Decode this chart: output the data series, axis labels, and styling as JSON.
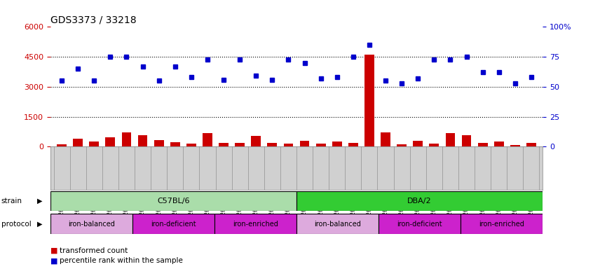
{
  "title": "GDS3373 / 33218",
  "samples": [
    "GSM262762",
    "GSM262765",
    "GSM262768",
    "GSM262769",
    "GSM262770",
    "GSM262796",
    "GSM262797",
    "GSM262798",
    "GSM262799",
    "GSM262800",
    "GSM262771",
    "GSM262772",
    "GSM262773",
    "GSM262794",
    "GSM262795",
    "GSM262817",
    "GSM262819",
    "GSM262820",
    "GSM262839",
    "GSM262840",
    "GSM262950",
    "GSM262951",
    "GSM262952",
    "GSM262953",
    "GSM262954",
    "GSM262841",
    "GSM262842",
    "GSM262843",
    "GSM262844",
    "GSM262845"
  ],
  "red_bars": [
    120,
    380,
    270,
    450,
    700,
    580,
    320,
    220,
    150,
    680,
    200,
    180,
    550,
    180,
    160,
    280,
    150,
    250,
    200,
    4600,
    700,
    120,
    280,
    160,
    680,
    580,
    190,
    250,
    80,
    180
  ],
  "blue_dots_pct": [
    55,
    65,
    55,
    75,
    75,
    67,
    55,
    67,
    58,
    73,
    56,
    73,
    59,
    56,
    73,
    70,
    57,
    58,
    75,
    85,
    55,
    53,
    57,
    73,
    73,
    75,
    62,
    62,
    53,
    58
  ],
  "left_ylim": [
    0,
    6000
  ],
  "left_yticks": [
    0,
    1500,
    3000,
    4500,
    6000
  ],
  "right_ylim": [
    0,
    100
  ],
  "right_yticks": [
    0,
    25,
    50,
    75,
    100
  ],
  "left_ytick_labels": [
    "0",
    "1500",
    "3000",
    "4500",
    "6000"
  ],
  "right_ytick_labels": [
    "0",
    "25",
    "50",
    "75",
    "100%"
  ],
  "left_color": "#cc0000",
  "right_color": "#0000cc",
  "bar_color": "#cc0000",
  "dot_color": "#0000cc",
  "strain_groups": [
    {
      "label": "C57BL/6",
      "start": 0,
      "end": 15,
      "color": "#aaddaa"
    },
    {
      "label": "DBA/2",
      "start": 15,
      "end": 30,
      "color": "#33cc33"
    }
  ],
  "protocol_groups": [
    {
      "label": "iron-balanced",
      "start": 0,
      "end": 5,
      "color": "#ddaadd"
    },
    {
      "label": "iron-deficient",
      "start": 5,
      "end": 10,
      "color": "#cc22cc"
    },
    {
      "label": "iron-enriched",
      "start": 10,
      "end": 15,
      "color": "#cc22cc"
    },
    {
      "label": "iron-balanced",
      "start": 15,
      "end": 20,
      "color": "#ddaadd"
    },
    {
      "label": "iron-deficient",
      "start": 20,
      "end": 25,
      "color": "#cc22cc"
    },
    {
      "label": "iron-enriched",
      "start": 25,
      "end": 30,
      "color": "#cc22cc"
    }
  ],
  "legend_items": [
    {
      "label": "transformed count",
      "color": "#cc0000"
    },
    {
      "label": "percentile rank within the sample",
      "color": "#0000cc"
    }
  ],
  "dotted_grid": [
    1500,
    3000,
    4500
  ],
  "bg_color": "#ffffff",
  "tick_area_color": "#d0d0d0"
}
